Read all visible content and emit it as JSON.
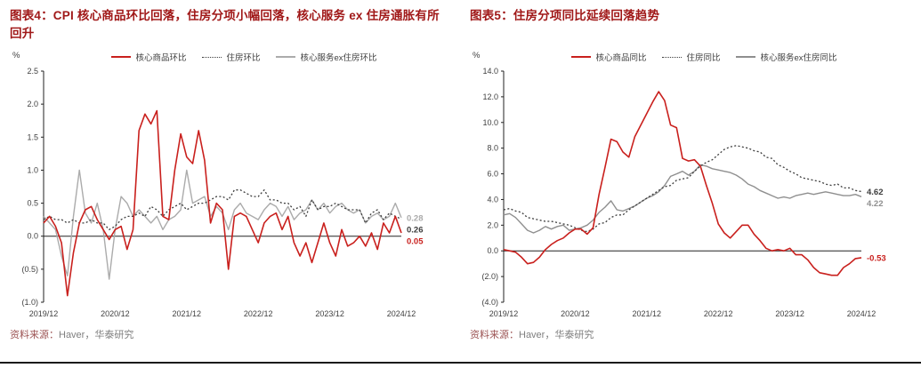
{
  "page": {
    "background": "#FFFFFF",
    "title_color": "#A01818",
    "bottom_rule_color": "#1A1A1A"
  },
  "panels": [
    {
      "figure_label": "图表4",
      "title": "图表4：CPI 核心商品环比回落，住房分项小幅回落，核心服务 ex 住房通胀有所回升",
      "source_label": "资料来源：",
      "source_text": "Haver，华泰研究"
    },
    {
      "figure_label": "图表5",
      "title": "图表5：住房分项同比延续回落趋势",
      "source_label": "资料来源：",
      "source_text": "Haver，华泰研究"
    }
  ],
  "chart_data": [
    {
      "type": "line",
      "title": "图表4：CPI 核心商品环比回落，住房分项小幅回落，核心服务 ex 住房通胀有所回升",
      "ylabel": "%",
      "xlabel": "",
      "ylim": [
        -1.0,
        2.5
      ],
      "ytick_step": 0.5,
      "ytick_labels": [
        "2.5",
        "2.0",
        "1.5",
        "1.0",
        "0.5",
        "0.0",
        "(0.5)",
        "(1.0)"
      ],
      "xtick_labels": [
        "2019/12",
        "2020/12",
        "2021/12",
        "2022/12",
        "2023/12",
        "2024/12"
      ],
      "xtick_every": 12,
      "grid": false,
      "legend_position": "top",
      "series": [
        {
          "name": "核心商品环比",
          "color": "#C9201D",
          "style": "solid",
          "width": 1.6,
          "end_label": "0.05",
          "values": [
            0.2,
            0.3,
            0.15,
            -0.1,
            -0.9,
            -0.25,
            0.2,
            0.4,
            0.45,
            0.25,
            0.1,
            -0.05,
            0.1,
            0.15,
            -0.2,
            0.1,
            1.6,
            1.85,
            1.7,
            1.9,
            0.3,
            0.25,
            1.0,
            1.55,
            1.2,
            1.1,
            1.6,
            1.15,
            0.2,
            0.5,
            0.4,
            -0.5,
            0.3,
            0.35,
            0.3,
            0.1,
            -0.1,
            0.2,
            0.3,
            0.35,
            0.1,
            0.3,
            -0.1,
            -0.3,
            -0.1,
            -0.4,
            -0.1,
            0.2,
            -0.1,
            -0.3,
            0.1,
            -0.15,
            -0.1,
            0.0,
            -0.15,
            0.05,
            -0.2,
            0.2,
            0.05,
            0.3,
            0.05
          ]
        },
        {
          "name": "住房环比",
          "color": "#3C3C3C",
          "style": "dotted",
          "width": 1.3,
          "end_label": "0.26",
          "values": [
            0.25,
            0.3,
            0.25,
            0.25,
            0.2,
            0.25,
            0.2,
            0.2,
            0.25,
            0.2,
            0.2,
            0.1,
            0.15,
            0.25,
            0.3,
            0.3,
            0.35,
            0.3,
            0.45,
            0.4,
            0.3,
            0.4,
            0.45,
            0.5,
            0.4,
            0.45,
            0.5,
            0.5,
            0.55,
            0.6,
            0.6,
            0.55,
            0.7,
            0.7,
            0.65,
            0.6,
            0.6,
            0.7,
            0.55,
            0.55,
            0.5,
            0.5,
            0.4,
            0.45,
            0.3,
            0.55,
            0.4,
            0.45,
            0.45,
            0.5,
            0.45,
            0.4,
            0.4,
            0.4,
            0.2,
            0.35,
            0.4,
            0.25,
            0.35,
            0.3,
            0.26
          ]
        },
        {
          "name": "核心服务ex住房环比",
          "color": "#ABABAB",
          "style": "solid",
          "width": 1.4,
          "end_label": "0.28",
          "values": [
            0.3,
            0.2,
            0.1,
            -0.3,
            -0.6,
            0.3,
            1.0,
            0.35,
            0.2,
            0.5,
            0.1,
            -0.65,
            0.1,
            0.6,
            0.5,
            0.3,
            0.4,
            0.3,
            0.2,
            0.3,
            0.1,
            0.25,
            0.3,
            0.4,
            1.0,
            0.5,
            0.55,
            0.6,
            0.3,
            0.45,
            0.35,
            0.1,
            0.4,
            0.5,
            0.35,
            0.3,
            0.25,
            0.4,
            0.5,
            0.45,
            0.3,
            0.45,
            0.25,
            0.35,
            0.4,
            0.55,
            0.4,
            0.5,
            0.35,
            0.45,
            0.5,
            0.4,
            0.35,
            0.4,
            0.2,
            0.3,
            0.35,
            0.25,
            0.3,
            0.5,
            0.28
          ]
        }
      ]
    },
    {
      "type": "line",
      "title": "图表5：住房分项同比延续回落趋势",
      "ylabel": "%",
      "xlabel": "",
      "ylim": [
        -4.0,
        14.0
      ],
      "ytick_step": 2.0,
      "ytick_labels": [
        "14.0",
        "12.0",
        "10.0",
        "8.0",
        "6.0",
        "4.0",
        "2.0",
        "0.0",
        "(2.0)",
        "(4.0)"
      ],
      "xtick_labels": [
        "2019/12",
        "2020/12",
        "2021/12",
        "2022/12",
        "2023/12",
        "2024/12"
      ],
      "xtick_every": 12,
      "grid": false,
      "legend_position": "top",
      "series": [
        {
          "name": "核心商品同比",
          "color": "#C9201D",
          "style": "solid",
          "width": 1.6,
          "end_label": "-0.53",
          "values": [
            0.1,
            0.0,
            -0.1,
            -0.5,
            -1.0,
            -0.9,
            -0.5,
            0.1,
            0.5,
            0.8,
            1.0,
            1.4,
            1.7,
            1.7,
            1.3,
            1.8,
            4.4,
            6.5,
            8.7,
            8.5,
            7.7,
            7.3,
            8.9,
            9.8,
            10.7,
            11.6,
            12.4,
            11.7,
            9.8,
            9.6,
            7.2,
            7.0,
            7.1,
            6.6,
            5.1,
            3.7,
            2.1,
            1.4,
            1.0,
            1.5,
            2.0,
            2.0,
            1.3,
            0.8,
            0.2,
            0.0,
            0.1,
            0.0,
            0.2,
            -0.3,
            -0.3,
            -0.7,
            -1.3,
            -1.7,
            -1.8,
            -1.9,
            -1.9,
            -1.3,
            -1.0,
            -0.6,
            -0.53
          ]
        },
        {
          "name": "住房同比",
          "color": "#3C3C3C",
          "style": "dotted",
          "width": 1.3,
          "end_label": "4.62",
          "values": [
            3.2,
            3.3,
            3.1,
            3.0,
            2.6,
            2.5,
            2.4,
            2.3,
            2.3,
            2.2,
            2.1,
            2.0,
            1.8,
            1.6,
            1.5,
            1.7,
            2.1,
            2.2,
            2.6,
            2.8,
            2.8,
            3.2,
            3.5,
            3.8,
            4.1,
            4.4,
            4.7,
            5.0,
            5.1,
            5.5,
            5.6,
            5.7,
            6.2,
            6.6,
            6.9,
            7.1,
            7.5,
            7.9,
            8.1,
            8.2,
            8.1,
            8.0,
            7.8,
            7.7,
            7.3,
            7.2,
            6.7,
            6.5,
            6.2,
            6.0,
            5.7,
            5.6,
            5.5,
            5.4,
            5.2,
            5.1,
            5.2,
            4.9,
            4.9,
            4.7,
            4.62
          ]
        },
        {
          "name": "核心服务ex住房同比",
          "color": "#8F8F8F",
          "style": "solid",
          "width": 1.4,
          "end_label": "4.22",
          "values": [
            2.8,
            2.9,
            2.6,
            2.1,
            1.6,
            1.4,
            1.6,
            1.9,
            1.7,
            1.9,
            2.0,
            1.6,
            1.7,
            1.8,
            2.0,
            2.4,
            3.0,
            3.4,
            3.9,
            3.2,
            3.1,
            3.3,
            3.5,
            3.8,
            4.1,
            4.3,
            4.6,
            5.1,
            5.8,
            6.0,
            6.2,
            5.9,
            6.2,
            6.7,
            6.6,
            6.4,
            6.3,
            6.2,
            6.1,
            5.9,
            5.6,
            5.2,
            5.0,
            4.7,
            4.5,
            4.3,
            4.1,
            4.2,
            4.1,
            4.3,
            4.4,
            4.5,
            4.4,
            4.5,
            4.6,
            4.5,
            4.4,
            4.3,
            4.3,
            4.4,
            4.22
          ]
        }
      ]
    }
  ]
}
